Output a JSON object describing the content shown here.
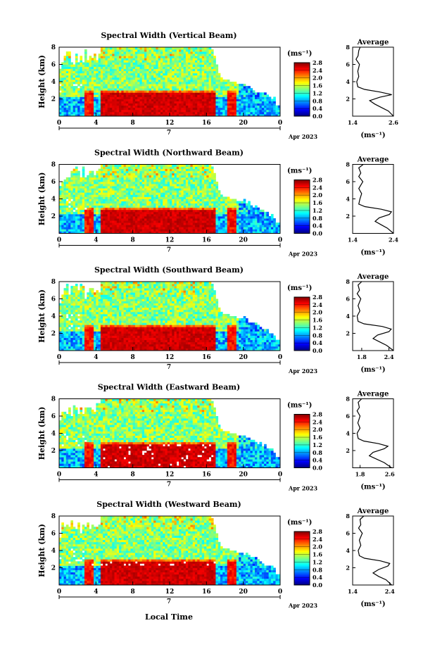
{
  "figure": {
    "xlabel": "Local Time",
    "date_label": "Apr 2023",
    "day_label": "7",
    "colorbar_unit": "(ms⁻¹)",
    "avg_title": "Average",
    "avg_unit": "(ms⁻¹)"
  },
  "chart_data": [
    {
      "type": "heatmap",
      "title": "Spectral Width (Vertical Beam)",
      "xlabel": "",
      "ylabel": "Height (km)",
      "xticks": [
        "0",
        "4",
        "8",
        "12",
        "16",
        "20",
        "0"
      ],
      "xlim": [
        0,
        24
      ],
      "ylim": [
        0,
        8
      ],
      "yticks": [
        "2",
        "4",
        "6",
        "8"
      ],
      "colorbar": {
        "ticks": [
          "0.0",
          "0.4",
          "0.8",
          "1.2",
          "1.6",
          "2.0",
          "2.4",
          "2.8"
        ],
        "range": [
          0,
          2.8
        ]
      },
      "average": {
        "xticks": [
          "1.4",
          "2.6"
        ],
        "xlim": [
          1.4,
          2.6
        ],
        "profile": [
          [
            0.0,
            2.6
          ],
          [
            0.6,
            2.45
          ],
          [
            1.0,
            2.25
          ],
          [
            1.4,
            2.05
          ],
          [
            1.8,
            1.9
          ],
          [
            2.2,
            2.2
          ],
          [
            2.5,
            2.55
          ],
          [
            2.8,
            2.2
          ],
          [
            3.1,
            1.75
          ],
          [
            3.4,
            1.55
          ],
          [
            4.0,
            1.52
          ],
          [
            4.6,
            1.58
          ],
          [
            5.2,
            1.55
          ],
          [
            6.0,
            1.6
          ],
          [
            6.6,
            1.5
          ],
          [
            7.0,
            1.56
          ],
          [
            7.6,
            1.58
          ],
          [
            8.0,
            1.62
          ]
        ]
      }
    },
    {
      "type": "heatmap",
      "title": "Spectral Width (Northward Beam)",
      "xlabel": "",
      "ylabel": "Height (km)",
      "xticks": [
        "0",
        "4",
        "8",
        "12",
        "16",
        "20",
        "0"
      ],
      "xlim": [
        0,
        24
      ],
      "ylim": [
        0,
        8
      ],
      "yticks": [
        "2",
        "4",
        "6",
        "8"
      ],
      "colorbar": {
        "ticks": [
          "0.0",
          "0.4",
          "0.8",
          "1.2",
          "1.6",
          "2.0",
          "2.4",
          "2.8"
        ],
        "range": [
          0,
          2.8
        ]
      },
      "average": {
        "xticks": [
          "1.4",
          "2.4"
        ],
        "xlim": [
          1.4,
          2.4
        ],
        "profile": [
          [
            0.0,
            2.4
          ],
          [
            0.6,
            2.25
          ],
          [
            1.0,
            2.1
          ],
          [
            1.4,
            1.95
          ],
          [
            1.8,
            2.05
          ],
          [
            2.2,
            2.3
          ],
          [
            2.5,
            2.35
          ],
          [
            2.8,
            2.1
          ],
          [
            3.1,
            1.7
          ],
          [
            3.4,
            1.55
          ],
          [
            4.0,
            1.58
          ],
          [
            4.6,
            1.62
          ],
          [
            5.2,
            1.55
          ],
          [
            6.0,
            1.65
          ],
          [
            6.6,
            1.55
          ],
          [
            7.0,
            1.6
          ],
          [
            7.6,
            1.55
          ],
          [
            8.0,
            1.66
          ]
        ]
      }
    },
    {
      "type": "heatmap",
      "title": "Spectral Width (Southward Beam)",
      "xlabel": "",
      "ylabel": "Height (km)",
      "xticks": [
        "0",
        "4",
        "8",
        "12",
        "16",
        "20",
        "0"
      ],
      "xlim": [
        0,
        24
      ],
      "ylim": [
        0,
        8
      ],
      "yticks": [
        "2",
        "4",
        "6",
        "8"
      ],
      "colorbar": {
        "ticks": [
          "0.0",
          "0.4",
          "0.8",
          "1.2",
          "1.6",
          "2.0",
          "2.4",
          "2.8"
        ],
        "range": [
          0,
          2.8
        ]
      },
      "average": {
        "xticks": [
          "1.8",
          "2.4"
        ],
        "xlim": [
          1.6,
          2.5
        ],
        "profile": [
          [
            0.0,
            2.5
          ],
          [
            0.6,
            2.35
          ],
          [
            1.0,
            2.2
          ],
          [
            1.4,
            2.05
          ],
          [
            1.8,
            2.15
          ],
          [
            2.2,
            2.4
          ],
          [
            2.5,
            2.45
          ],
          [
            2.8,
            2.25
          ],
          [
            3.1,
            1.85
          ],
          [
            3.4,
            1.72
          ],
          [
            4.0,
            1.7
          ],
          [
            4.6,
            1.76
          ],
          [
            5.2,
            1.72
          ],
          [
            6.0,
            1.78
          ],
          [
            6.6,
            1.7
          ],
          [
            7.0,
            1.75
          ],
          [
            7.6,
            1.72
          ],
          [
            8.0,
            1.8
          ]
        ]
      }
    },
    {
      "type": "heatmap",
      "title": "Spectral Width (Eastward Beam)",
      "xlabel": "",
      "ylabel": "Height (km)",
      "xticks": [
        "0",
        "4",
        "8",
        "12",
        "16",
        "20",
        "0"
      ],
      "xlim": [
        0,
        24
      ],
      "ylim": [
        0,
        8
      ],
      "yticks": [
        "2",
        "4",
        "6",
        "8"
      ],
      "colorbar": {
        "ticks": [
          "0.0",
          "0.4",
          "0.8",
          "1.2",
          "1.6",
          "2.0",
          "2.4",
          "2.8"
        ],
        "range": [
          0,
          2.8
        ]
      },
      "average": {
        "xticks": [
          "1.8",
          "2.6"
        ],
        "xlim": [
          1.6,
          2.7
        ],
        "profile": [
          [
            0.0,
            2.65
          ],
          [
            0.6,
            2.45
          ],
          [
            1.0,
            2.25
          ],
          [
            1.4,
            2.05
          ],
          [
            1.8,
            2.15
          ],
          [
            2.2,
            2.45
          ],
          [
            2.5,
            2.55
          ],
          [
            2.8,
            2.3
          ],
          [
            3.1,
            1.9
          ],
          [
            3.4,
            1.75
          ],
          [
            4.0,
            1.72
          ],
          [
            4.6,
            1.8
          ],
          [
            5.2,
            1.74
          ],
          [
            6.0,
            1.8
          ],
          [
            6.6,
            1.72
          ],
          [
            7.0,
            1.78
          ],
          [
            7.6,
            1.75
          ],
          [
            8.0,
            1.84
          ]
        ]
      }
    },
    {
      "type": "heatmap",
      "title": "Spectral Width (Westward Beam)",
      "xlabel": "",
      "ylabel": "Height (km)",
      "xticks": [
        "0",
        "4",
        "8",
        "12",
        "16",
        "20",
        "0"
      ],
      "xlim": [
        0,
        24
      ],
      "ylim": [
        0,
        8
      ],
      "yticks": [
        "2",
        "4",
        "6",
        "8"
      ],
      "colorbar": {
        "ticks": [
          "0.0",
          "0.4",
          "0.8",
          "1.2",
          "1.6",
          "2.0",
          "2.4",
          "2.8"
        ],
        "range": [
          0,
          2.8
        ]
      },
      "average": {
        "xticks": [
          "1.4",
          "2.4"
        ],
        "xlim": [
          1.4,
          2.5
        ],
        "profile": [
          [
            0.0,
            2.45
          ],
          [
            0.6,
            2.3
          ],
          [
            1.0,
            2.1
          ],
          [
            1.4,
            1.95
          ],
          [
            1.8,
            2.1
          ],
          [
            2.2,
            2.35
          ],
          [
            2.5,
            2.4
          ],
          [
            2.8,
            2.15
          ],
          [
            3.1,
            1.72
          ],
          [
            3.4,
            1.58
          ],
          [
            4.0,
            1.55
          ],
          [
            4.6,
            1.62
          ],
          [
            5.2,
            1.58
          ],
          [
            6.0,
            1.66
          ],
          [
            6.6,
            1.56
          ],
          [
            7.0,
            1.62
          ],
          [
            7.6,
            1.6
          ],
          [
            8.0,
            1.7
          ]
        ]
      }
    }
  ]
}
